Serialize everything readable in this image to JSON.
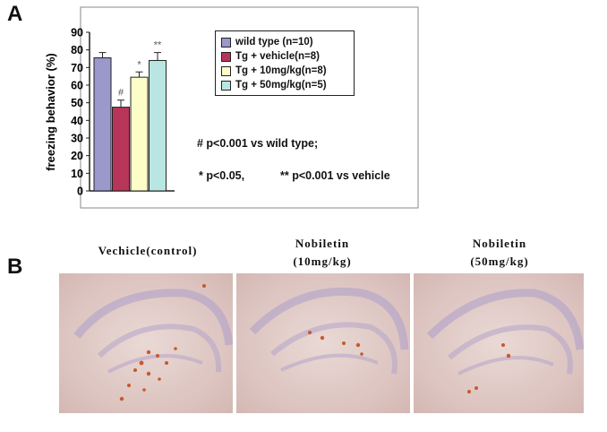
{
  "panels": {
    "a_label": "A",
    "b_label": "B"
  },
  "chart_data": {
    "type": "bar",
    "ylabel": "freezing behavior (%)",
    "ylim": [
      0,
      90
    ],
    "yticks": [
      0,
      10,
      20,
      30,
      40,
      50,
      60,
      70,
      80,
      90
    ],
    "categories": [
      "wild type (n=10)",
      "Tg + vehicle(n=8)",
      "Tg + 10mg/kg(n=8)",
      "Tg + 50mg/kg(n=5)"
    ],
    "values": [
      75.5,
      47.5,
      64.5,
      74
    ],
    "errors": [
      3,
      4,
      3,
      4.5
    ],
    "significance": [
      "",
      "#",
      "*",
      "**"
    ],
    "colors": [
      "#9b98cc",
      "#b8355a",
      "#fdfdc8",
      "#b9e6e3"
    ],
    "legend": [
      "wild type (n=10)",
      "Tg + vehicle(n=8)",
      "Tg + 10mg/kg(n=8)",
      "Tg + 50mg/kg(n=5)"
    ],
    "legend_position": "top-right",
    "grid": false,
    "annotations": {
      "hash_note": "# p<0.001 vs wild type;",
      "star_note": "*  p<0.05,",
      "double_star_note": "**   p<0.001 vs vehicle"
    }
  },
  "images": [
    {
      "caption_line1": "Vechicle(control)",
      "caption_line2": ""
    },
    {
      "caption_line1": "Nobiletin",
      "caption_line2": "(10mg/kg)"
    },
    {
      "caption_line1": "Nobiletin",
      "caption_line2": "(50mg/kg)"
    }
  ]
}
